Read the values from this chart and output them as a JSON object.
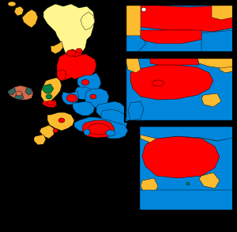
{
  "background_color": "#000000",
  "colors": {
    "labour": "#FF0000",
    "conservative": "#0087DC",
    "lib_dem": "#FDBB30",
    "snp": "#FFF68F",
    "plaid_cymru": "#008142",
    "dup": "#D46A4C",
    "sinn_fein": "#326760",
    "other": "#FFFFFF"
  },
  "figsize": [
    3.0,
    2.93
  ],
  "dpi": 100
}
